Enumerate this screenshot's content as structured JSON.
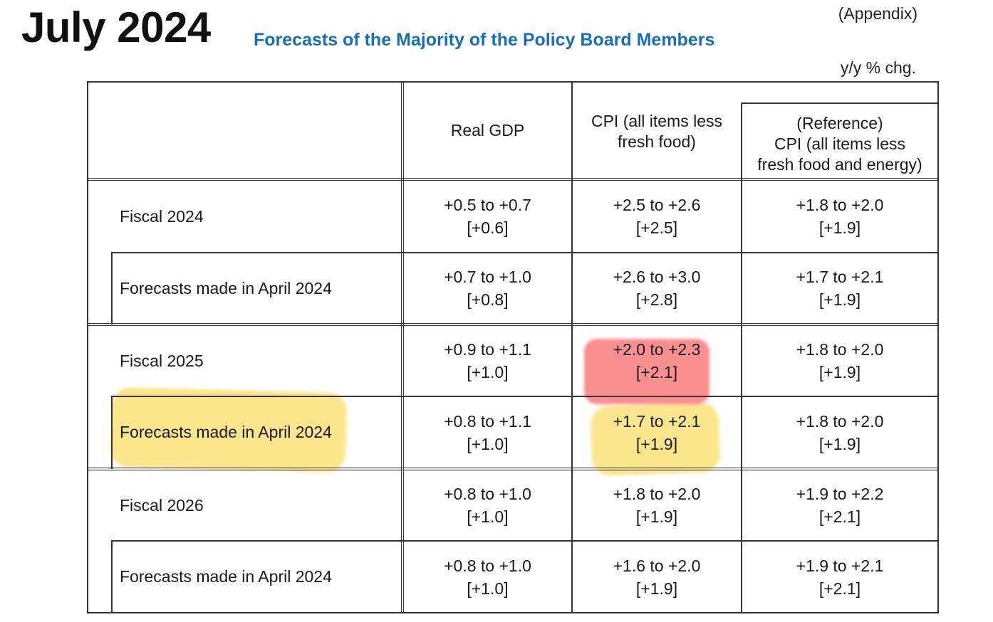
{
  "header": {
    "title": "July 2024",
    "subtitle": "Forecasts of the Majority of the Policy Board Members",
    "appendix": "(Appendix)",
    "unit": "y/y % chg."
  },
  "columns": [
    {
      "lines": [
        "Real GDP"
      ]
    },
    {
      "lines": [
        "CPI (all items less",
        "fresh food)"
      ]
    },
    {
      "lines": [
        "(Reference)",
        "CPI (all items less",
        "fresh food and energy)"
      ]
    }
  ],
  "rows": [
    {
      "label": "Fiscal 2024",
      "cells": [
        {
          "range": "+0.5 to +0.7",
          "median": "[+0.6]"
        },
        {
          "range": "+2.5 to +2.6",
          "median": "[+2.5]"
        },
        {
          "range": "+1.8 to +2.0",
          "median": "[+1.9]"
        }
      ]
    },
    {
      "label": "Forecasts made in April 2024",
      "cells": [
        {
          "range": "+0.7 to +1.0",
          "median": "[+0.8]"
        },
        {
          "range": "+2.6 to +3.0",
          "median": "[+2.8]"
        },
        {
          "range": "+1.7 to +2.1",
          "median": "[+1.9]"
        }
      ]
    },
    {
      "label": "Fiscal 2025",
      "cells": [
        {
          "range": "+0.9 to +1.1",
          "median": "[+1.0]"
        },
        {
          "range": "+2.0 to +2.3",
          "median": "[+2.1]"
        },
        {
          "range": "+1.8 to +2.0",
          "median": "[+1.9]"
        }
      ]
    },
    {
      "label": "Forecasts made in April 2024",
      "cells": [
        {
          "range": "+0.8 to +1.1",
          "median": "[+1.0]"
        },
        {
          "range": "+1.7 to +2.1",
          "median": "[+1.9]"
        },
        {
          "range": "+1.8 to +2.0",
          "median": "[+1.9]"
        }
      ]
    },
    {
      "label": "Fiscal 2026",
      "cells": [
        {
          "range": "+0.8 to +1.0",
          "median": "[+1.0]"
        },
        {
          "range": "+1.8 to +2.0",
          "median": "[+1.9]"
        },
        {
          "range": "+1.9 to +2.2",
          "median": "[+2.1]"
        }
      ]
    },
    {
      "label": "Forecasts made in April 2024",
      "cells": [
        {
          "range": "+0.8 to +1.0",
          "median": "[+1.0]"
        },
        {
          "range": "+1.6 to +2.0",
          "median": "[+1.9]"
        },
        {
          "range": "+1.9 to +2.1",
          "median": "[+2.1]"
        }
      ]
    }
  ],
  "highlights": {
    "yellow": "#f9d64a",
    "red": "#f46464"
  }
}
